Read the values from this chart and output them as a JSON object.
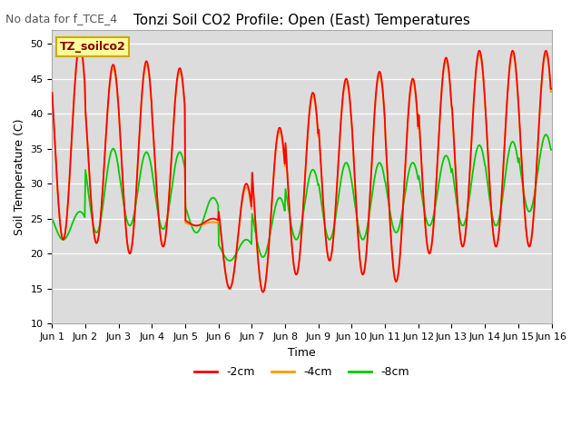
{
  "title": "Tonzi Soil CO2 Profile: Open (East) Temperatures",
  "subtitle": "No data for f_TCE_4",
  "xlabel": "Time",
  "ylabel": "Soil Temperature (C)",
  "ylim": [
    10,
    52
  ],
  "yticks": [
    10,
    15,
    20,
    25,
    30,
    35,
    40,
    45,
    50
  ],
  "bg_color": "#dcdcdc",
  "legend_label": "TZ_soilco2",
  "legend_bg": "#ffff99",
  "legend_border": "#ccaa00",
  "series_colors": [
    "#ff0000",
    "#ff9900",
    "#00cc00"
  ],
  "series_labels": [
    "-2cm",
    "-4cm",
    "-8cm"
  ],
  "n_days": 15,
  "pts_per_day": 48,
  "xtick_labels": [
    "Jun 1",
    "Jun 2",
    "Jun 3",
    "Jun 4",
    "Jun 5",
    "Jun 6",
    "Jun 7",
    "Jun 8",
    "Jun 9",
    "Jun 10",
    "Jun 11",
    "Jun 12",
    "Jun 13",
    "Jun 14",
    "Jun 15",
    "Jun 16"
  ],
  "figsize": [
    6.4,
    4.8
  ],
  "dpi": 100
}
